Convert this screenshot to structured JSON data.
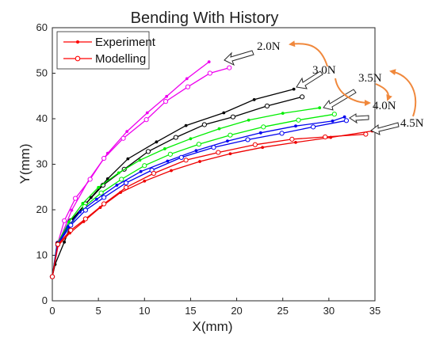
{
  "chart_data": {
    "type": "line",
    "title": "Bending With History",
    "xlabel": "X(mm)",
    "ylabel": "Y(mm)",
    "xlim": [
      0,
      35
    ],
    "ylim": [
      0,
      60
    ],
    "xticks": [
      "0",
      "5",
      "10",
      "15",
      "20",
      "25",
      "30",
      "35"
    ],
    "yticks": [
      "0",
      "10",
      "20",
      "30",
      "40",
      "50",
      "60"
    ],
    "grid": false,
    "legend_position": "top-left",
    "legend": [
      {
        "label": "Experiment",
        "color": "#ff0000",
        "marker": "dot"
      },
      {
        "label": "Modelling",
        "color": "#ff0000",
        "marker": "circle"
      }
    ],
    "force_labels": [
      "2.0N",
      "3.0N",
      "3.5N",
      "4.0N",
      "4.5N"
    ],
    "series": [
      {
        "force": "2.0N",
        "kind": "Experiment",
        "color": "#ee00ee",
        "marker": "dot",
        "x": [
          0,
          0.7,
          2.1,
          4.0,
          6.0,
          8.1,
          10.3,
          12.4,
          14.6,
          17.0
        ],
        "y": [
          5.3,
          12.8,
          19.9,
          26.7,
          32.4,
          37.2,
          41.3,
          44.9,
          48.8,
          52.5
        ]
      },
      {
        "force": "2.0N",
        "kind": "Modelling",
        "color": "#ee00ee",
        "marker": "circle",
        "x": [
          0,
          0.6,
          1.3,
          2.5,
          4.1,
          5.6,
          7.7,
          10.2,
          12.3,
          14.7,
          17.1,
          19.2
        ],
        "y": [
          5.3,
          12.7,
          17.6,
          22.5,
          26.7,
          31.3,
          35.7,
          39.8,
          43.8,
          47.0,
          50.0,
          51.2
        ]
      },
      {
        "force": "3.0N",
        "kind": "Experiment",
        "color": "#000000",
        "marker": "dot",
        "x": [
          0,
          0.3,
          1.3,
          2.2,
          4.2,
          6.0,
          8.2,
          11.3,
          14.5,
          18.6,
          21.9,
          26.2
        ],
        "y": [
          5.3,
          8.0,
          12.9,
          17.7,
          22.7,
          26.8,
          31.2,
          34.9,
          38.5,
          41.3,
          44.2,
          46.5
        ]
      },
      {
        "force": "3.0N",
        "kind": "Modelling",
        "color": "#000000",
        "marker": "circle",
        "x": [
          0,
          0.6,
          2.0,
          3.6,
          5.5,
          7.8,
          10.4,
          13.4,
          16.5,
          19.6,
          23.3,
          27.1
        ],
        "y": [
          5.3,
          12.6,
          17.6,
          21.3,
          25.4,
          28.9,
          32.8,
          35.9,
          38.7,
          40.4,
          42.8,
          44.8
        ]
      },
      {
        "force": "3.5N",
        "kind": "Experiment",
        "color": "#00ee00",
        "marker": "dot",
        "x": [
          0,
          0.5,
          1.8,
          3.3,
          5.0,
          7.2,
          9.5,
          12.2,
          15.0,
          18.1,
          21.3,
          25.0,
          29.0
        ],
        "y": [
          5.3,
          12.4,
          17.3,
          21.4,
          24.9,
          28.1,
          30.9,
          33.4,
          35.6,
          37.8,
          39.7,
          41.2,
          42.4
        ]
      },
      {
        "force": "3.5N",
        "kind": "Modelling",
        "color": "#00ee00",
        "marker": "circle",
        "x": [
          0,
          0.6,
          1.9,
          3.5,
          5.3,
          7.5,
          10.0,
          12.8,
          15.9,
          19.3,
          22.9,
          26.7,
          30.6
        ],
        "y": [
          5.3,
          12.4,
          16.7,
          20.7,
          23.7,
          26.7,
          29.7,
          32.2,
          34.4,
          36.4,
          38.2,
          39.7,
          41.0
        ]
      },
      {
        "force": "4.0N",
        "kind": "Experiment",
        "color": "#0000ee",
        "marker": "dot",
        "x": [
          0,
          0.5,
          1.7,
          3.0,
          4.8,
          7.0,
          9.6,
          12.5,
          15.6,
          19.0,
          22.6,
          26.4,
          30.4,
          31.7
        ],
        "y": [
          5.3,
          12.2,
          16.3,
          19.5,
          22.3,
          25.4,
          28.4,
          30.7,
          33.0,
          35.1,
          36.9,
          38.4,
          39.5,
          40.4
        ]
      },
      {
        "force": "4.0N",
        "kind": "Modelling",
        "color": "#0000ee",
        "marker": "circle",
        "x": [
          0,
          0.6,
          2.0,
          3.6,
          5.6,
          8.0,
          10.8,
          14.0,
          17.5,
          21.2,
          24.9,
          28.3,
          31.9
        ],
        "y": [
          5.3,
          12.4,
          16.6,
          19.9,
          22.7,
          25.9,
          28.7,
          31.5,
          33.7,
          35.4,
          36.8,
          38.2,
          39.6
        ]
      },
      {
        "force": "4.5N",
        "kind": "Experiment",
        "color": "#ee0000",
        "marker": "dot",
        "x": [
          0,
          0.6,
          1.9,
          3.4,
          5.2,
          7.4,
          10.0,
          12.9,
          16.0,
          19.3,
          22.8,
          26.4,
          30.2,
          34.7
        ],
        "y": [
          5.3,
          12.1,
          14.9,
          17.4,
          20.5,
          23.8,
          26.3,
          28.6,
          30.6,
          32.3,
          33.7,
          34.8,
          35.9,
          37.3
        ]
      },
      {
        "force": "4.5N",
        "kind": "Modelling",
        "color": "#ee0000",
        "marker": "circle",
        "x": [
          0,
          0.6,
          2.0,
          3.6,
          5.6,
          8.0,
          11.0,
          14.5,
          18.0,
          22.0,
          26.0,
          29.6,
          34.0
        ],
        "y": [
          5.3,
          12.4,
          15.5,
          18.0,
          21.3,
          24.9,
          28.0,
          30.9,
          32.6,
          34.3,
          35.5,
          36.0,
          36.6
        ]
      }
    ]
  }
}
